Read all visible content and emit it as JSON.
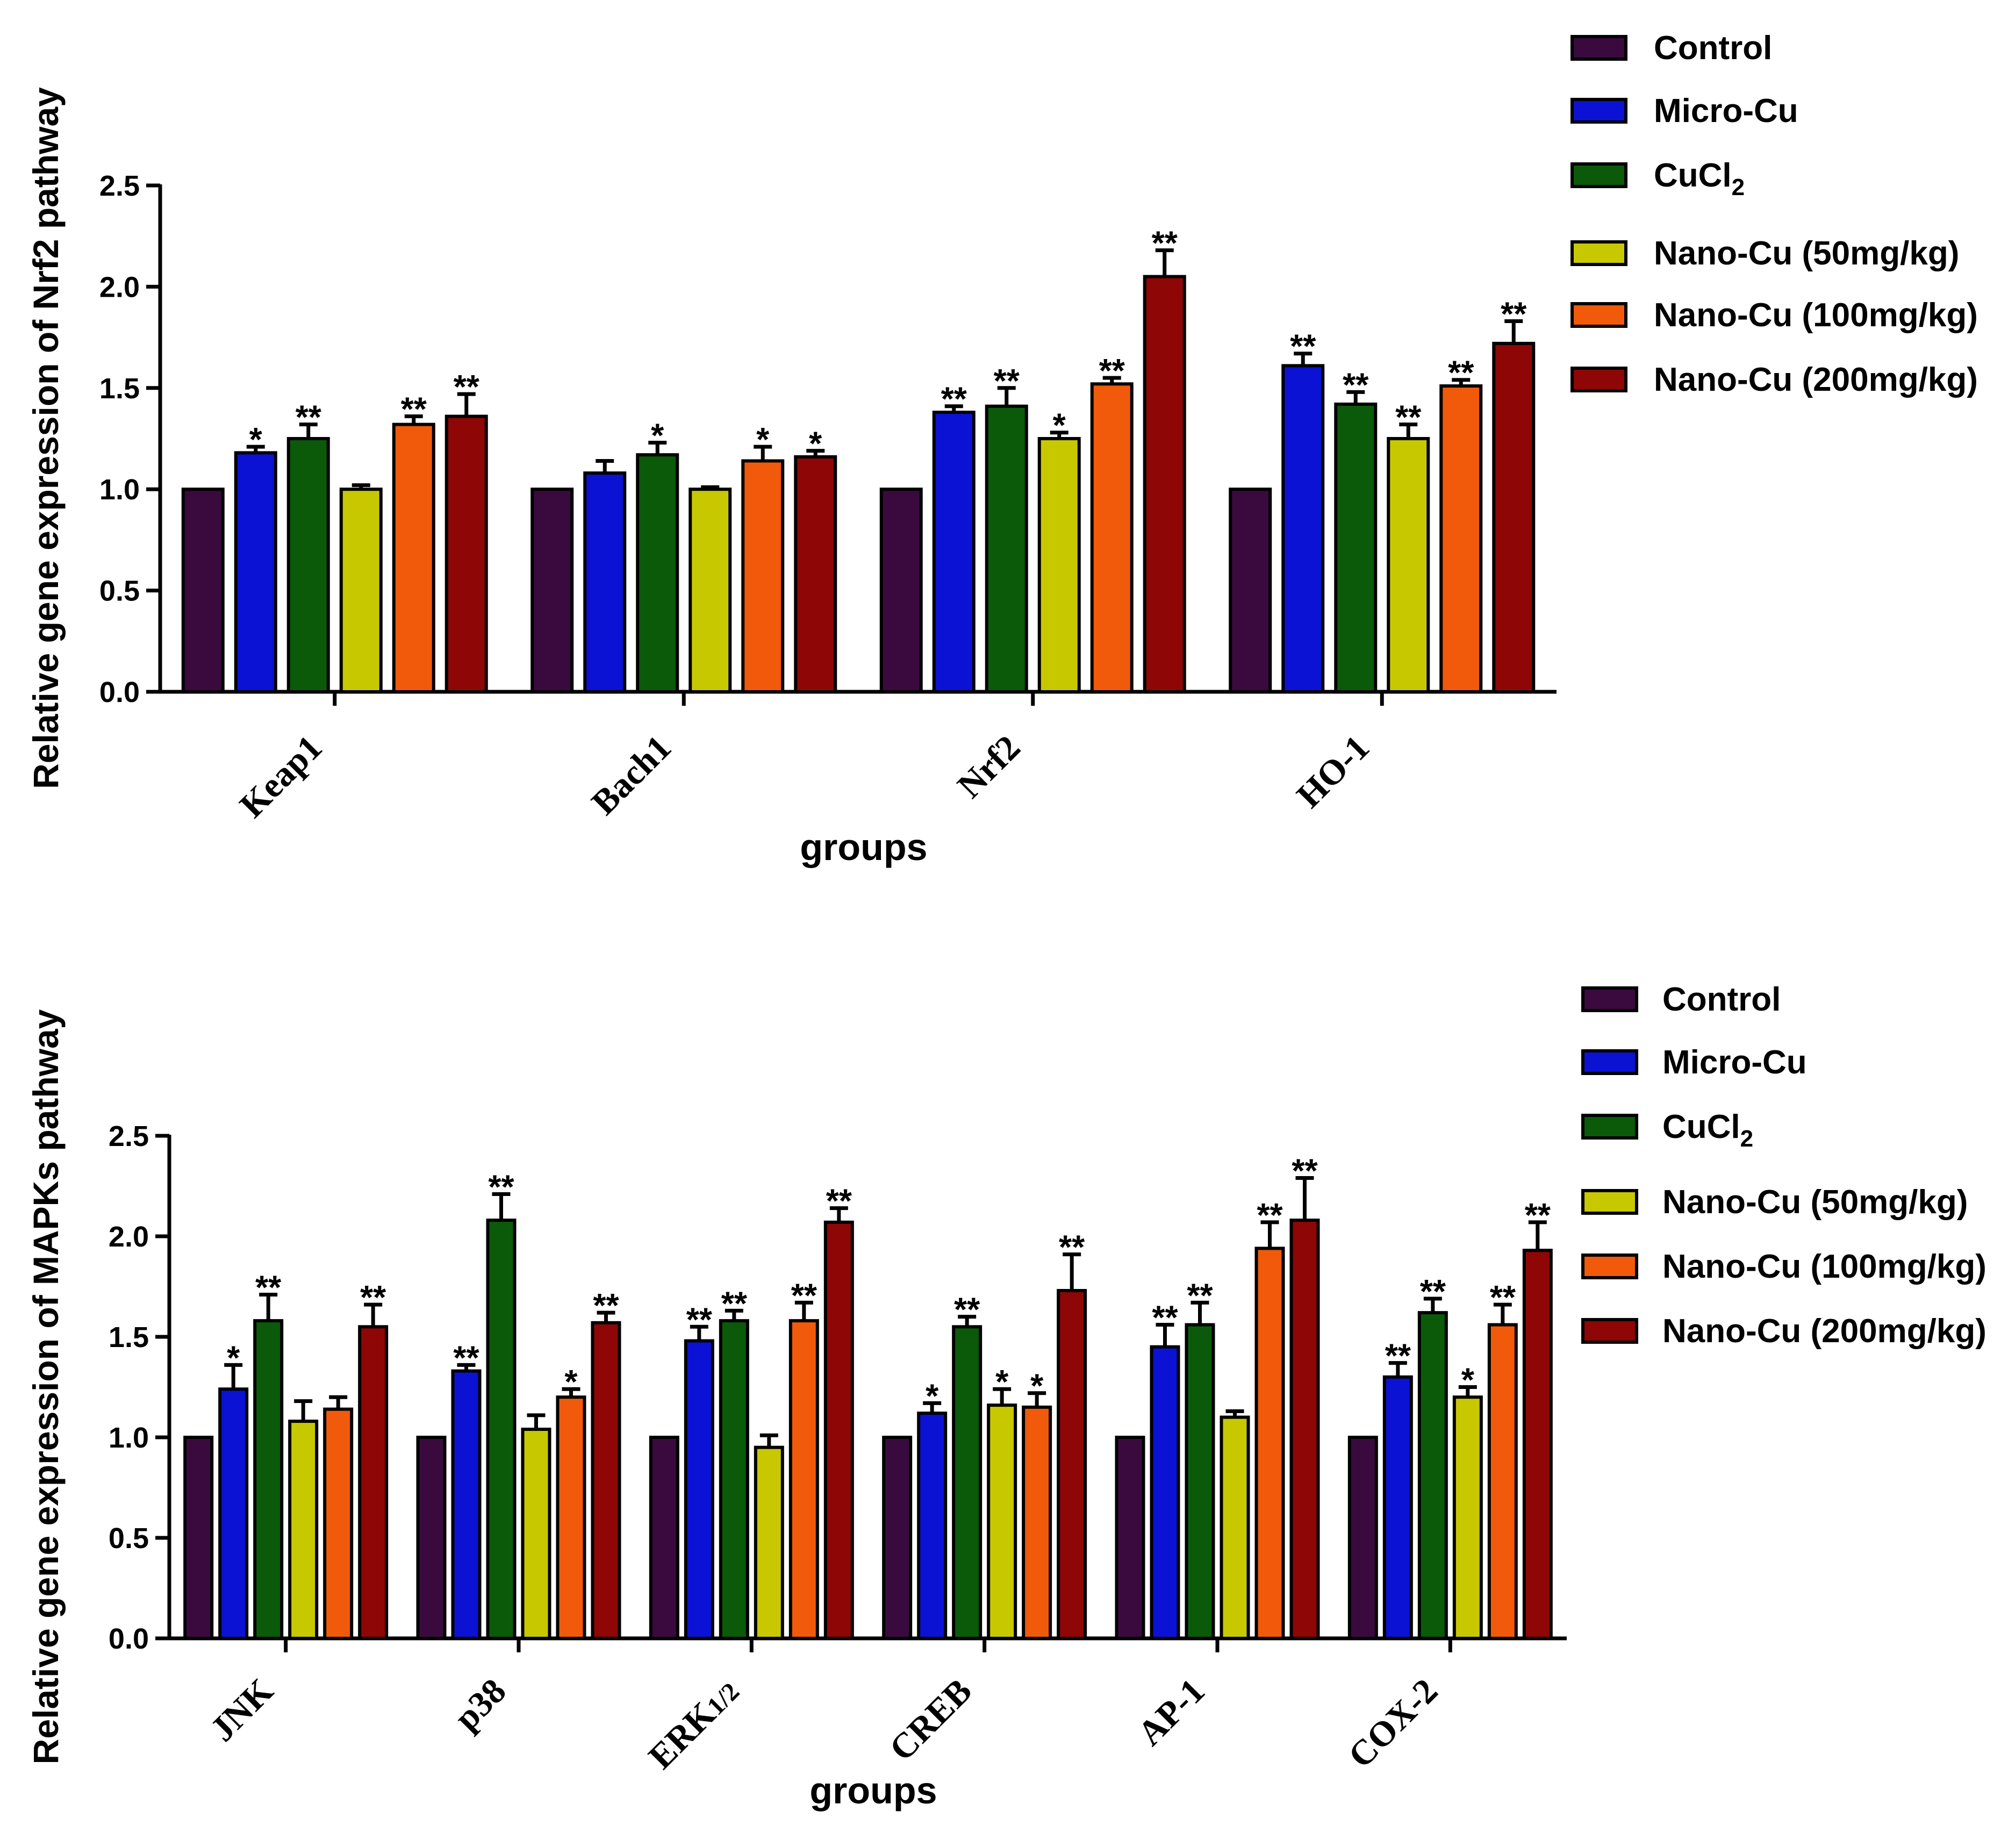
{
  "chart_data": [
    {
      "type": "bar",
      "ylabel": "Relative gene expression of Nrf2 pathway",
      "xlabel": "groups",
      "ylim": [
        0,
        2.5
      ],
      "yticks": [
        "0.0",
        "0.5",
        "1.0",
        "1.5",
        "2.0",
        "2.5"
      ],
      "categories": [
        "Keap1",
        "Bach1",
        "Nrf2",
        "HO-1"
      ],
      "legend": {
        "position": "top-right",
        "entries": [
          {
            "main": "Control",
            "sub": ""
          },
          {
            "main": "Micro-Cu",
            "sub": ""
          },
          {
            "main": "CuCl",
            "sub": "2"
          },
          {
            "main": "Nano-Cu (50mg/kg)",
            "sub": ""
          },
          {
            "main": "Nano-Cu (100mg/kg)",
            "sub": ""
          },
          {
            "main": "Nano-Cu (200mg/kg)",
            "sub": ""
          }
        ]
      },
      "series": [
        {
          "name": "Control",
          "color": "#3a0a3e",
          "values": [
            1.0,
            1.0,
            1.0,
            1.0
          ],
          "errors": [
            0.0,
            0.0,
            0.0,
            0.0
          ],
          "sig": [
            "",
            "",
            "",
            ""
          ]
        },
        {
          "name": "Micro-Cu",
          "color": "#0b12d4",
          "values": [
            1.18,
            1.08,
            1.38,
            1.61
          ],
          "errors": [
            0.03,
            0.06,
            0.03,
            0.06
          ],
          "sig": [
            "*",
            "",
            "**",
            "**"
          ]
        },
        {
          "name": "CuCl2",
          "color": "#0a5a0a",
          "values": [
            1.25,
            1.17,
            1.41,
            1.42
          ],
          "errors": [
            0.07,
            0.06,
            0.09,
            0.06
          ],
          "sig": [
            "**",
            "*",
            "**",
            "**"
          ]
        },
        {
          "name": "Nano-Cu (50mg/kg)",
          "color": "#c8c800",
          "values": [
            1.0,
            1.0,
            1.25,
            1.25
          ],
          "errors": [
            0.02,
            0.01,
            0.03,
            0.07
          ],
          "sig": [
            "",
            "",
            "*",
            "**"
          ]
        },
        {
          "name": "Nano-Cu (100mg/kg)",
          "color": "#f05a0a",
          "values": [
            1.32,
            1.14,
            1.52,
            1.51
          ],
          "errors": [
            0.04,
            0.07,
            0.03,
            0.03
          ],
          "sig": [
            "**",
            "*",
            "**",
            "**"
          ]
        },
        {
          "name": "Nano-Cu (200mg/kg)",
          "color": "#8e0606",
          "values": [
            1.36,
            1.16,
            2.05,
            1.72
          ],
          "errors": [
            0.11,
            0.03,
            0.13,
            0.11
          ],
          "sig": [
            "**",
            "*",
            "**",
            "**"
          ]
        }
      ]
    },
    {
      "type": "bar",
      "ylabel": "Relative gene expression of MAPKs pathway",
      "xlabel": "groups",
      "ylim": [
        0,
        2.5
      ],
      "yticks": [
        "0.0",
        "0.5",
        "1.0",
        "1.5",
        "2.0",
        "2.5"
      ],
      "categories": [
        "JNK",
        "p38",
        "ERK1/2",
        "CREB",
        "AP-1",
        "COX-2"
      ],
      "category_parts": [
        {
          "main": "JNK",
          "sub": ""
        },
        {
          "main": "p38",
          "sub": ""
        },
        {
          "main": "ERK",
          "sub": "1/2"
        },
        {
          "main": "CREB",
          "sub": ""
        },
        {
          "main": "AP-1",
          "sub": ""
        },
        {
          "main": "COX-2",
          "sub": ""
        }
      ],
      "legend": {
        "position": "top-right",
        "entries": [
          {
            "main": "Control",
            "sub": ""
          },
          {
            "main": "Micro-Cu",
            "sub": ""
          },
          {
            "main": "CuCl",
            "sub": "2"
          },
          {
            "main": "Nano-Cu (50mg/kg)",
            "sub": ""
          },
          {
            "main": "Nano-Cu (100mg/kg)",
            "sub": ""
          },
          {
            "main": "Nano-Cu (200mg/kg)",
            "sub": ""
          }
        ]
      },
      "series": [
        {
          "name": "Control",
          "color": "#3a0a3e",
          "values": [
            1.0,
            1.0,
            1.0,
            1.0,
            1.0,
            1.0
          ],
          "errors": [
            0,
            0,
            0,
            0,
            0,
            0
          ],
          "sig": [
            "",
            "",
            "",
            "",
            "",
            ""
          ]
        },
        {
          "name": "Micro-Cu",
          "color": "#0b12d4",
          "values": [
            1.24,
            1.33,
            1.48,
            1.12,
            1.45,
            1.3
          ],
          "errors": [
            0.12,
            0.03,
            0.07,
            0.05,
            0.11,
            0.07
          ],
          "sig": [
            "*",
            "**",
            "**",
            "*",
            "**",
            "**"
          ]
        },
        {
          "name": "CuCl2",
          "color": "#0a5a0a",
          "values": [
            1.58,
            2.08,
            1.58,
            1.55,
            1.56,
            1.62
          ],
          "errors": [
            0.13,
            0.13,
            0.05,
            0.05,
            0.11,
            0.07
          ],
          "sig": [
            "**",
            "**",
            "**",
            "**",
            "**",
            "**"
          ]
        },
        {
          "name": "Nano-Cu (50mg/kg)",
          "color": "#c8c800",
          "values": [
            1.08,
            1.04,
            0.95,
            1.16,
            1.1,
            1.2
          ],
          "errors": [
            0.1,
            0.07,
            0.06,
            0.08,
            0.03,
            0.05
          ],
          "sig": [
            "",
            "",
            "",
            "*",
            "",
            "*"
          ]
        },
        {
          "name": "Nano-Cu (100mg/kg)",
          "color": "#f05a0a",
          "values": [
            1.14,
            1.2,
            1.58,
            1.15,
            1.94,
            1.56
          ],
          "errors": [
            0.06,
            0.04,
            0.09,
            0.07,
            0.13,
            0.1
          ],
          "sig": [
            "",
            "*",
            "**",
            "*",
            "**",
            "**"
          ]
        },
        {
          "name": "Nano-Cu (200mg/kg)",
          "color": "#8e0606",
          "values": [
            1.55,
            1.57,
            2.07,
            1.73,
            2.08,
            1.93
          ],
          "errors": [
            0.11,
            0.05,
            0.07,
            0.18,
            0.21,
            0.14
          ],
          "sig": [
            "**",
            "**",
            "**",
            "**",
            "**",
            "**"
          ]
        }
      ]
    }
  ]
}
